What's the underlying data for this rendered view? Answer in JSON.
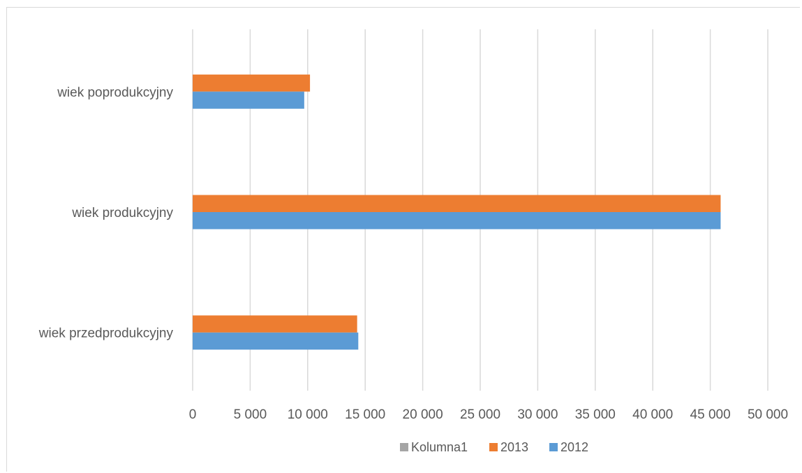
{
  "chart_data": {
    "type": "bar",
    "orientation": "horizontal",
    "categories": [
      "wiek przedprodukcyjny",
      "wiek produkcyjny",
      "wiek poprodukcyjny"
    ],
    "series": [
      {
        "name": "Kolumna1",
        "color": "#a5a5a5",
        "values": [
          null,
          null,
          null
        ]
      },
      {
        "name": "2013",
        "color": "#ed7d31",
        "values": [
          14300,
          45900,
          10200
        ]
      },
      {
        "name": "2012",
        "color": "#5b9bd5",
        "values": [
          14400,
          45900,
          9700
        ]
      }
    ],
    "xlim": [
      0,
      50000
    ],
    "ticks": [
      "0",
      "5 000",
      "10 000",
      "15 000",
      "20 000",
      "25 000",
      "30 000",
      "35 000",
      "40 000",
      "45 000",
      "50 000"
    ],
    "tick_values": [
      0,
      5000,
      10000,
      15000,
      20000,
      25000,
      30000,
      35000,
      40000,
      45000,
      50000
    ],
    "grid": true,
    "legend_position": "bottom",
    "legend": [
      "Kolumna1",
      "2013",
      "2012"
    ]
  }
}
